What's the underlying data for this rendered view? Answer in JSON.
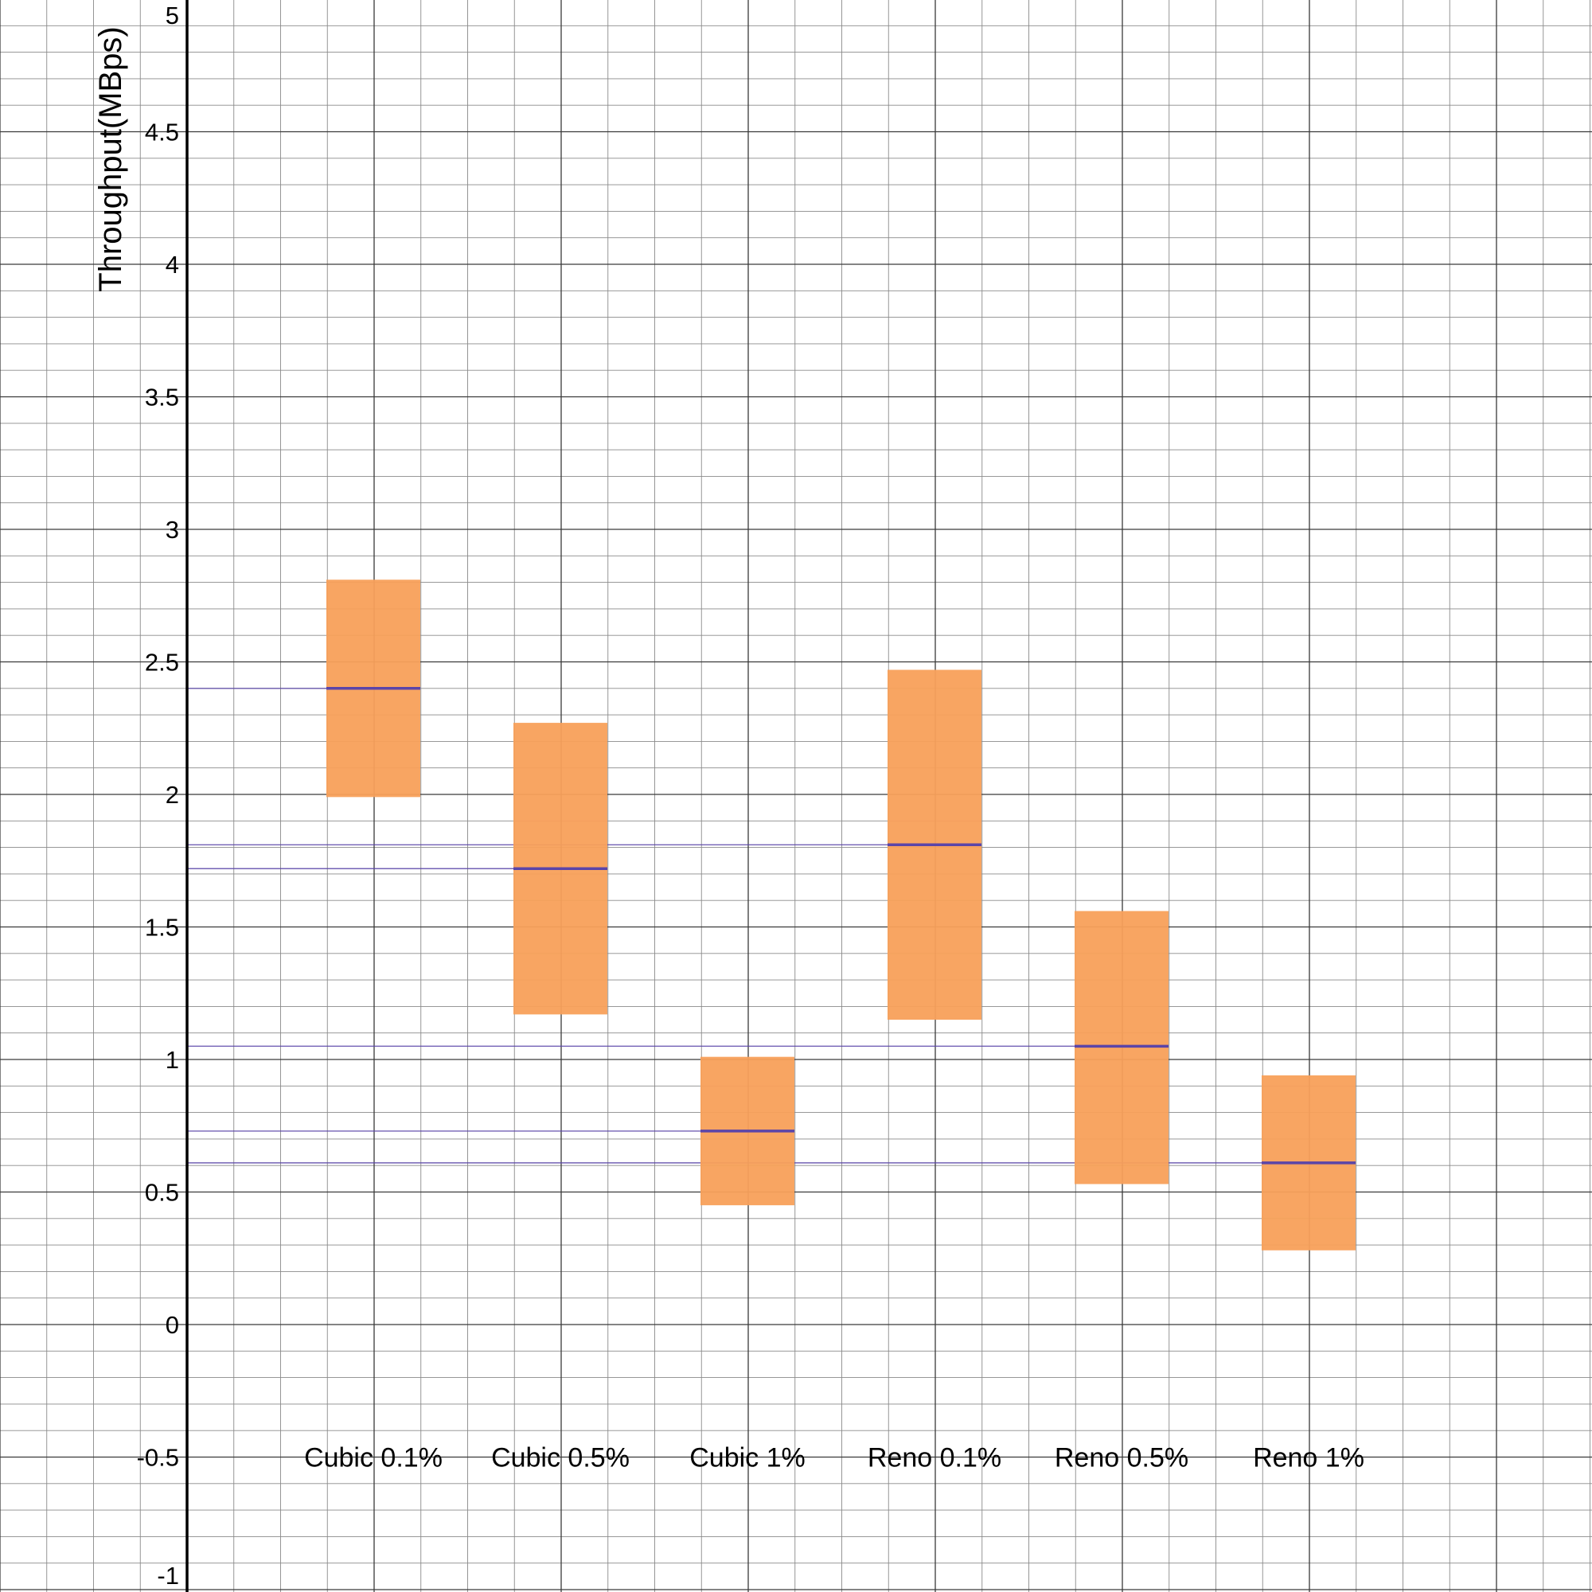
{
  "chart_data": {
    "type": "bar",
    "title": "",
    "xlabel": "",
    "ylabel": "Throughput(MBps)",
    "ylim": [
      -1,
      5
    ],
    "yticks": [
      "5",
      "4.5",
      "4",
      "3.5",
      "3",
      "2.5",
      "2",
      "1.5",
      "1",
      "0.5",
      "0",
      "-0.5",
      "-1"
    ],
    "ytick_values": [
      5,
      4.5,
      4,
      3.5,
      3,
      2.5,
      2,
      1.5,
      1,
      0.5,
      0,
      -0.5,
      -1
    ],
    "grid": true,
    "categories": [
      "Cubic 0.1%",
      "Cubic 0.5%",
      "Cubic 1%",
      "Reno 0.1%",
      "Reno 0.5%",
      "Reno 1%"
    ],
    "series": [
      {
        "low": [
          1.99,
          1.17,
          0.45,
          1.15,
          0.53,
          0.28
        ],
        "high": [
          2.81,
          2.27,
          1.01,
          2.47,
          1.56,
          0.94
        ],
        "mean": [
          2.4,
          1.72,
          0.73,
          1.81,
          1.05,
          0.61
        ]
      }
    ],
    "colors": {
      "bar": "#f8a05a",
      "mean_line": "#5b45a8",
      "grid_major": "#3a3a3a",
      "grid_minor": "#8a8a8a",
      "axis": "#000000"
    }
  }
}
